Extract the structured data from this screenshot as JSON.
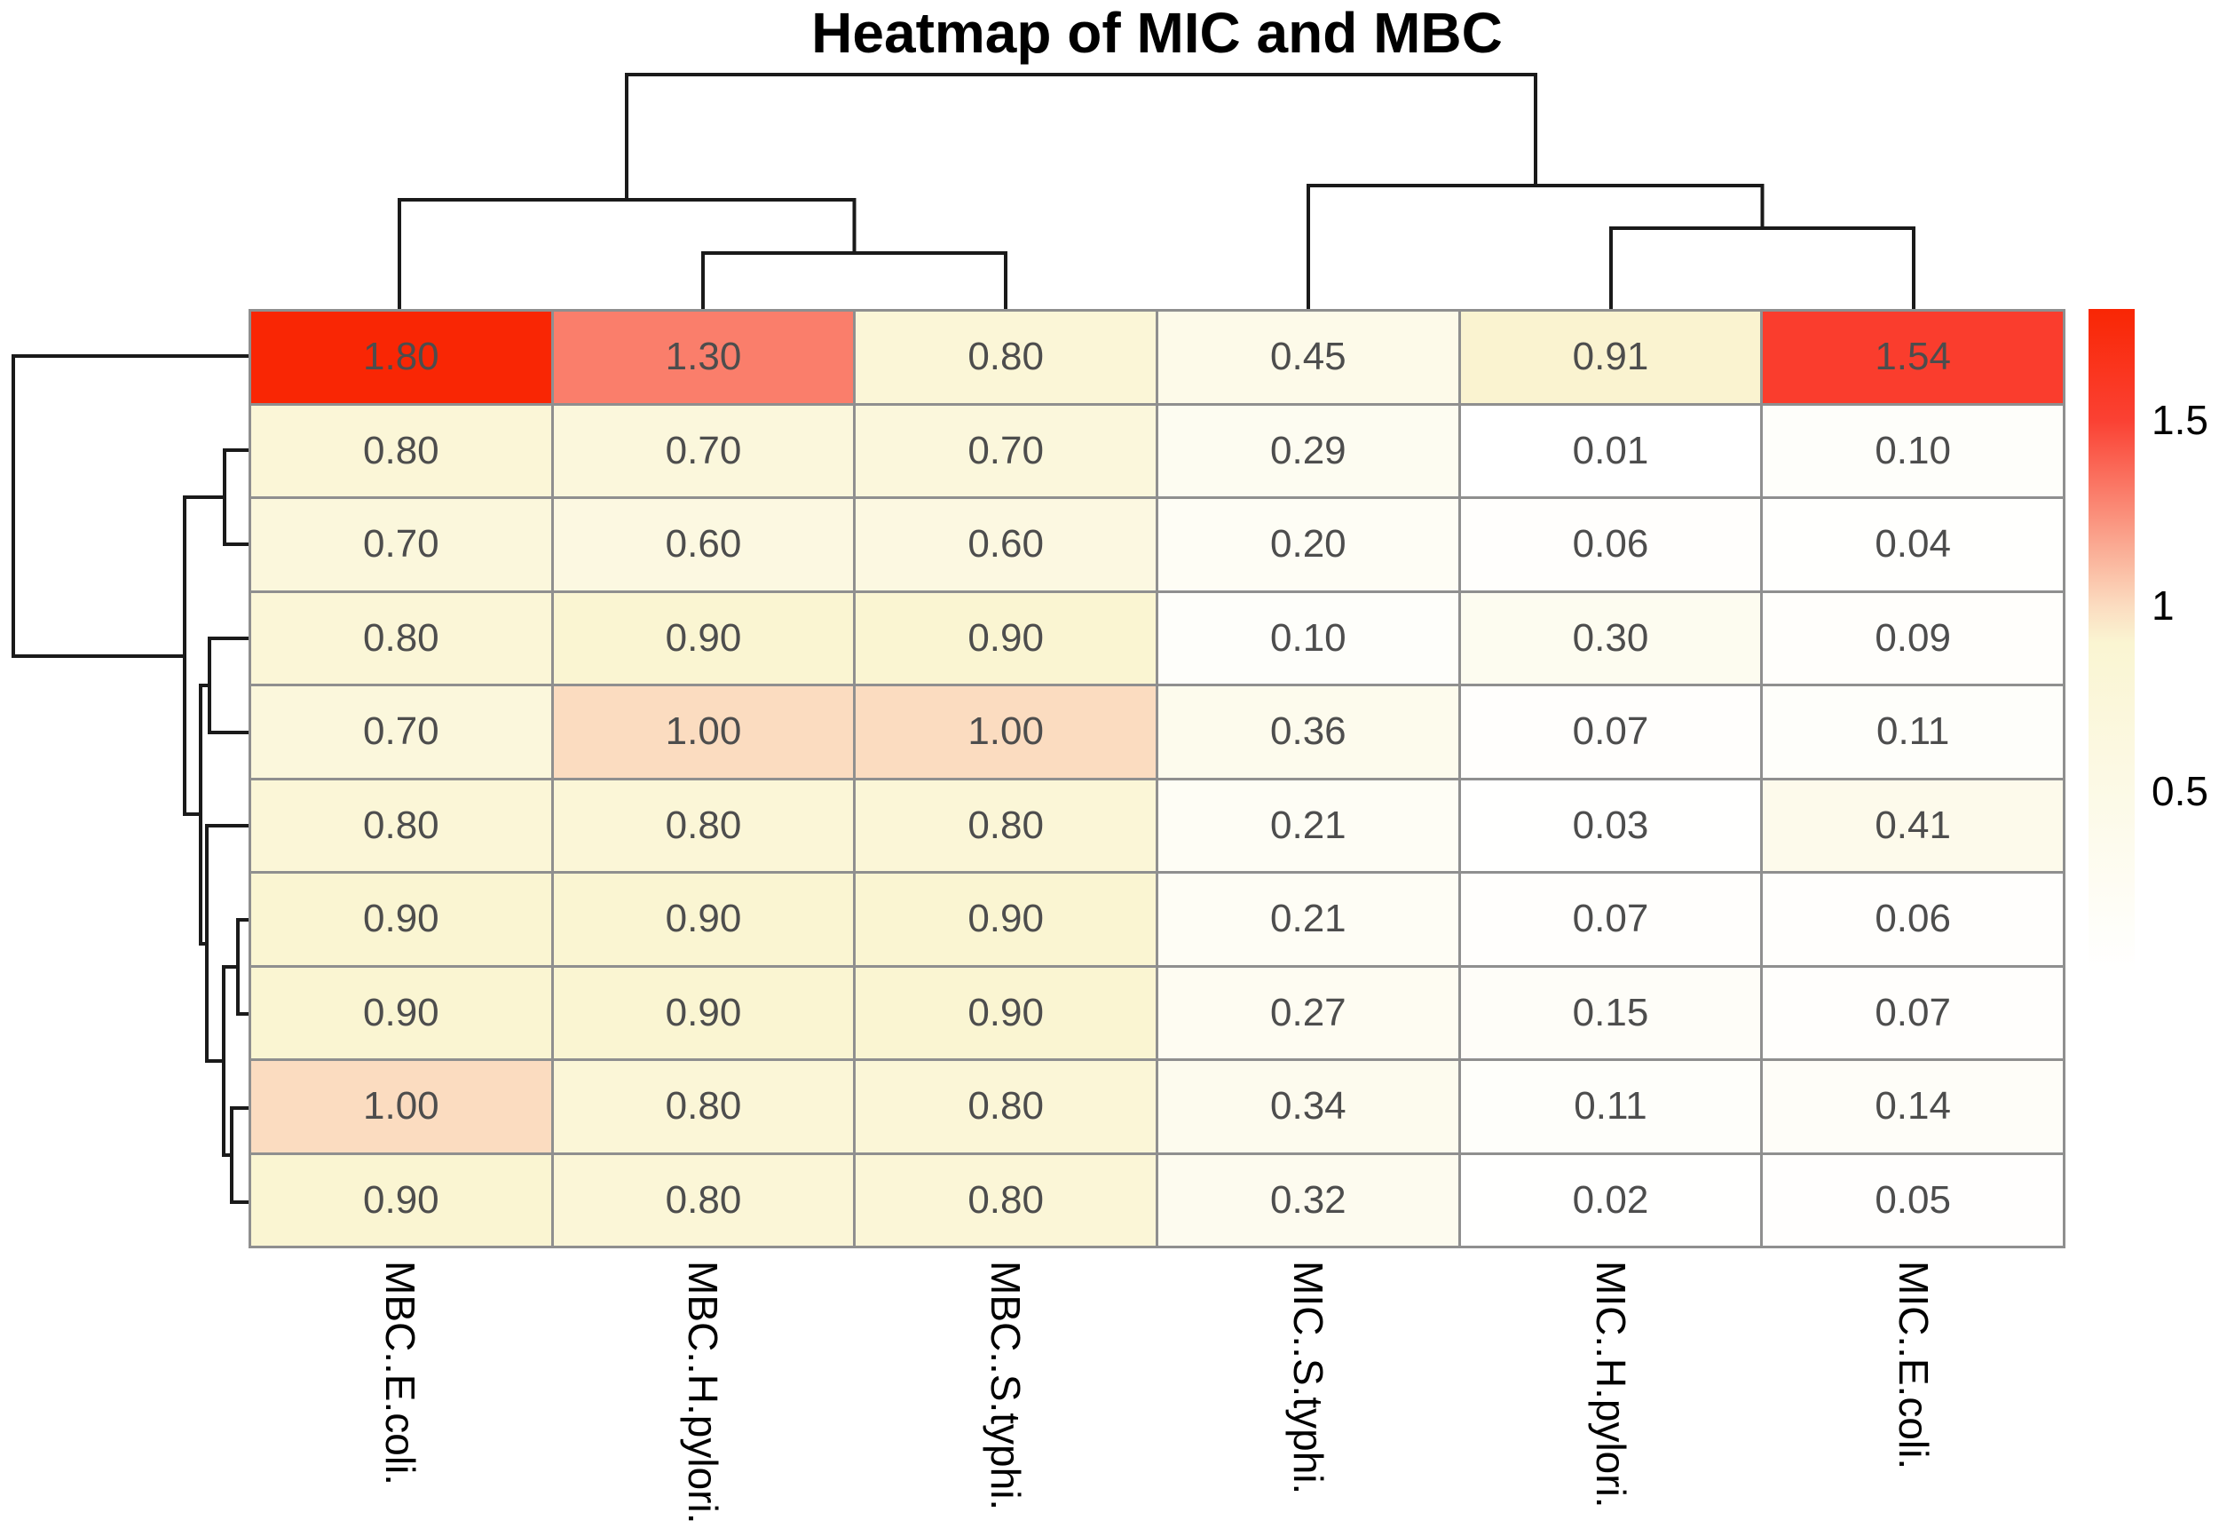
{
  "title": "Heatmap of MIC and MBC",
  "colors": {
    "background": "#ffffff",
    "grid_line": "#8f8f8f",
    "cell_text": "#4d4d4d",
    "dendrogram_line": "#1a1a1a",
    "title_text": "#000000",
    "label_text": "#000000"
  },
  "chart_data": {
    "type": "heatmap",
    "title": "Heatmap of MIC and MBC",
    "columns": [
      "MBC..E.coli.",
      "MBC..H.pylori.",
      "MBC..S.typhi.",
      "MIC..S.typhi.",
      "MIC..H.pylori.",
      "MIC..E.coli."
    ],
    "matrix": [
      [
        1.8,
        1.3,
        0.8,
        0.45,
        0.91,
        1.54
      ],
      [
        0.8,
        0.7,
        0.7,
        0.29,
        0.01,
        0.1
      ],
      [
        0.7,
        0.6,
        0.6,
        0.2,
        0.06,
        0.04
      ],
      [
        0.8,
        0.9,
        0.9,
        0.1,
        0.3,
        0.09
      ],
      [
        0.7,
        1.0,
        1.0,
        0.36,
        0.07,
        0.11
      ],
      [
        0.8,
        0.8,
        0.8,
        0.21,
        0.03,
        0.41
      ],
      [
        0.9,
        0.9,
        0.9,
        0.21,
        0.07,
        0.06
      ],
      [
        0.9,
        0.9,
        0.9,
        0.27,
        0.15,
        0.07
      ],
      [
        1.0,
        0.8,
        0.8,
        0.34,
        0.11,
        0.14
      ],
      [
        0.9,
        0.8,
        0.8,
        0.32,
        0.02,
        0.05
      ]
    ],
    "value_decimals": 2,
    "legend": {
      "position": "right",
      "ticks": [
        "1.5",
        "1",
        "0.5"
      ],
      "tick_values": [
        1.5,
        1.0,
        0.5
      ],
      "min": 0.01,
      "max": 1.8
    },
    "color_scale_stops": [
      {
        "value": 0.0,
        "color": "#ffffff"
      },
      {
        "value": 0.9,
        "color": "#faf5d2"
      },
      {
        "value": 1.0,
        "color": "#fbdcc0"
      },
      {
        "value": 1.3,
        "color": "#fa7e6b"
      },
      {
        "value": 1.5,
        "color": "#fa4133"
      },
      {
        "value": 1.8,
        "color": "#f92604"
      }
    ],
    "grid": true,
    "dendrograms": {
      "column_segments": [
        [
          792,
          348,
          792,
          285,
          1133,
          285,
          1133,
          348
        ],
        [
          450,
          348,
          450,
          225,
          962.5,
          225,
          962.5,
          285
        ],
        [
          1815,
          348,
          1815,
          257,
          2156,
          257,
          2156,
          348
        ],
        [
          1474,
          348,
          1474,
          209,
          1985.5,
          209,
          1985.5,
          257
        ],
        [
          706,
          225,
          706,
          84,
          1730,
          84,
          1730,
          209
        ]
      ],
      "row_segments": [
        [
          280,
          507,
          253,
          507,
          253,
          613,
          280,
          613
        ],
        [
          280,
          719,
          236,
          719,
          236,
          825,
          280,
          825
        ],
        [
          280,
          1036,
          268,
          1036,
          268,
          1142,
          280,
          1142
        ],
        [
          280,
          1248,
          261,
          1248,
          261,
          1354,
          280,
          1354
        ],
        [
          268,
          1089,
          252,
          1089,
          252,
          1301,
          261,
          1301
        ],
        [
          280,
          930,
          233,
          930,
          233,
          1195,
          252,
          1195
        ],
        [
          236,
          772,
          226,
          772,
          226,
          1063,
          233,
          1063
        ],
        [
          253,
          560,
          208,
          560,
          208,
          917,
          226,
          917
        ],
        [
          280,
          401,
          15,
          401,
          15,
          739,
          208,
          739
        ]
      ]
    }
  }
}
